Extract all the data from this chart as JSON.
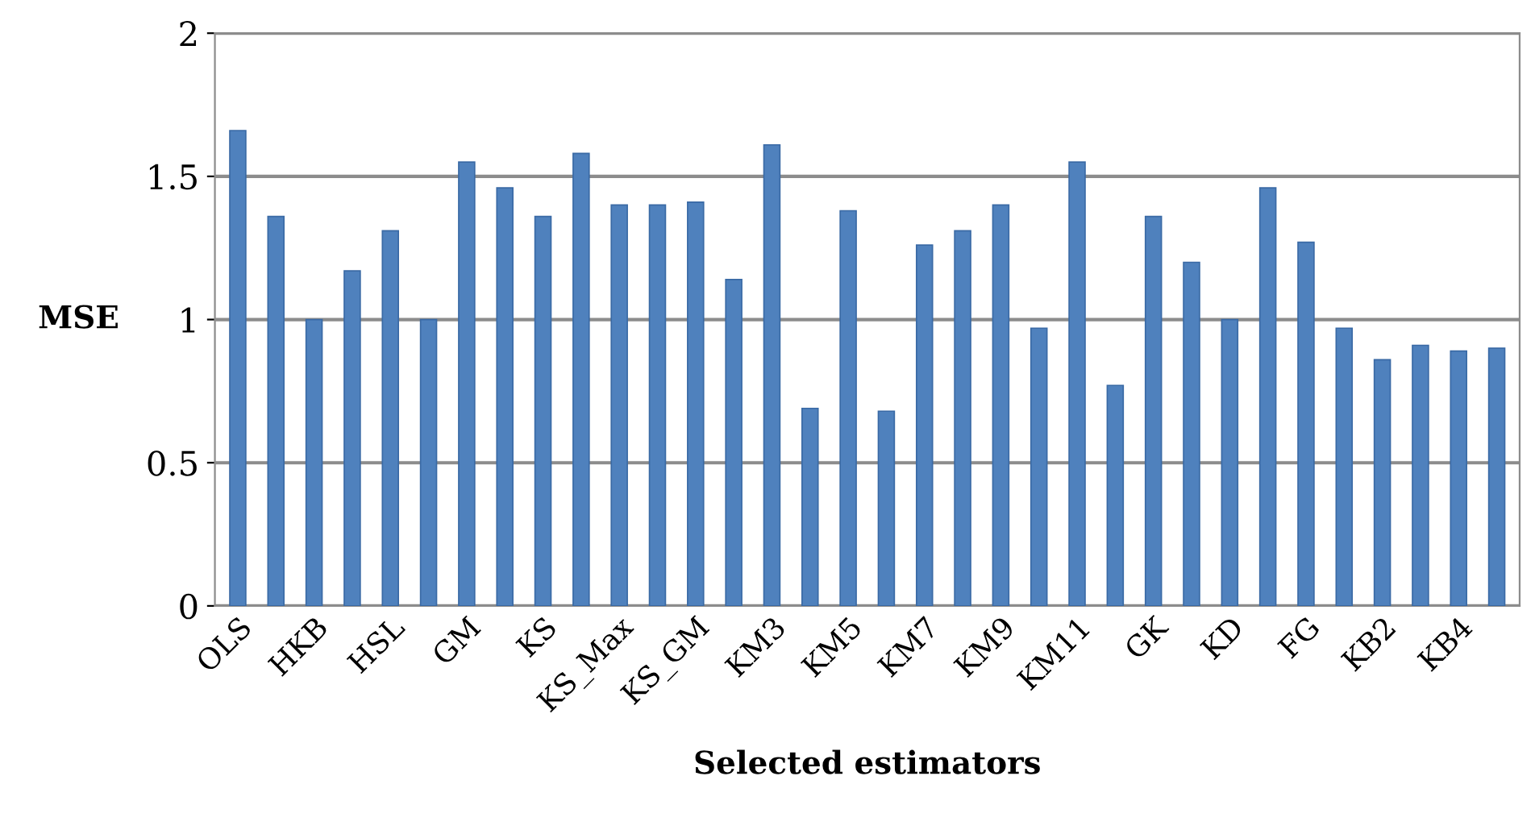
{
  "chart_data": {
    "type": "bar",
    "xlabel": "Selected estimators",
    "ylabel": "MSE",
    "categories": [
      "OLS",
      null,
      "HKB",
      null,
      "HSL",
      null,
      "GM",
      null,
      "KS",
      null,
      "KS_Max",
      null,
      "KS_GM",
      null,
      "KM3",
      null,
      "KM5",
      null,
      "KM7",
      null,
      "KM9",
      null,
      "KM11",
      null,
      "GK",
      null,
      "KD",
      null,
      "FG",
      null,
      "KB2",
      null,
      "KB4",
      null
    ],
    "values": [
      1.66,
      1.36,
      1.0,
      1.17,
      1.31,
      1.0,
      1.55,
      1.46,
      1.36,
      1.58,
      1.4,
      1.4,
      1.41,
      1.14,
      1.61,
      0.69,
      1.38,
      0.68,
      1.26,
      1.31,
      1.4,
      0.97,
      1.55,
      0.77,
      1.36,
      1.2,
      1.0,
      1.46,
      1.27,
      0.97,
      0.86,
      0.91,
      0.89,
      0.9
    ],
    "color": "#4f81bd",
    "ylim": [
      0,
      2
    ],
    "yticks": [
      0,
      0.5,
      1,
      1.5,
      2
    ],
    "grid": "y"
  }
}
